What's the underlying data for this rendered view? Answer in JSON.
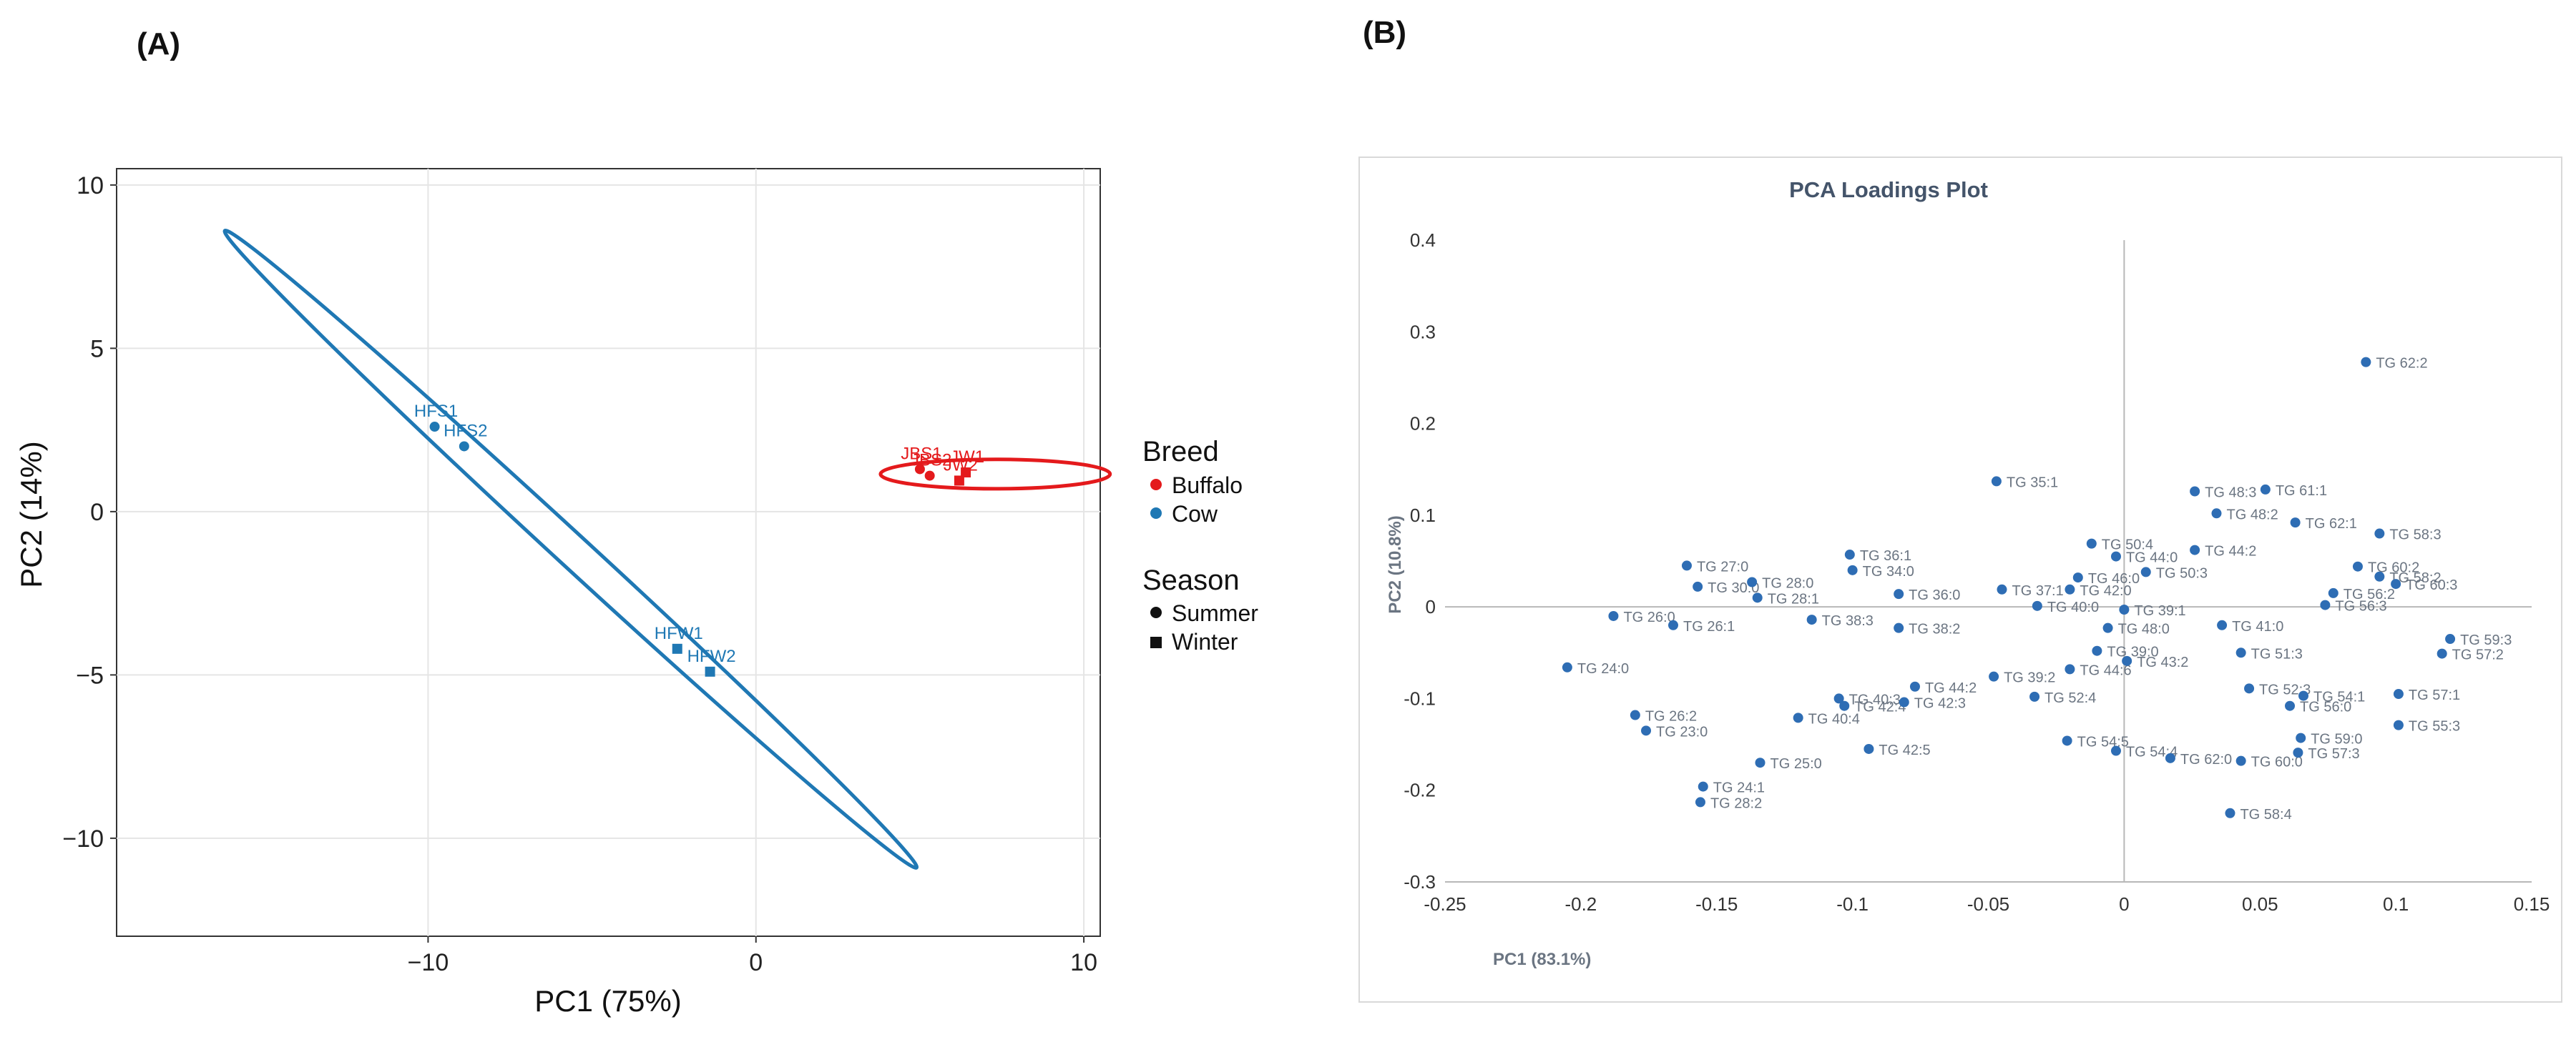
{
  "panel_labels": {
    "a": "(A)",
    "b": "(B)"
  },
  "chart_data": [
    {
      "type": "scatter",
      "title": "",
      "xlabel": "PC1 (75%)",
      "ylabel": "PC2 (14%)",
      "xlim": [
        -19.5,
        10.5
      ],
      "ylim": [
        -13,
        10.5
      ],
      "xticks": [
        -10,
        0,
        10
      ],
      "xtick_labels": [
        "−10",
        "0",
        "10"
      ],
      "yticks": [
        -10,
        -5,
        0,
        5,
        10
      ],
      "ytick_labels": [
        "−10",
        "−5",
        "0",
        "5",
        "10"
      ],
      "grid": true,
      "colors": {
        "Buffalo": "#e41a1c",
        "Cow": "#1f78b4",
        "grid": "#e5e5e5",
        "frame": "#333333"
      },
      "points": [
        {
          "label": "HFS1",
          "x": -9.8,
          "y": 2.6,
          "breed": "Cow",
          "season": "Summer"
        },
        {
          "label": "HFS2",
          "x": -8.9,
          "y": 2.0,
          "breed": "Cow",
          "season": "Summer"
        },
        {
          "label": "HFW1",
          "x": -2.4,
          "y": -4.2,
          "breed": "Cow",
          "season": "Winter"
        },
        {
          "label": "HFW2",
          "x": -1.4,
          "y": -4.9,
          "breed": "Cow",
          "season": "Winter"
        },
        {
          "label": "JBS1",
          "x": 5.0,
          "y": 1.3,
          "breed": "Buffalo",
          "season": "Summer"
        },
        {
          "label": "JBS2",
          "x": 5.3,
          "y": 1.1,
          "breed": "Buffalo",
          "season": "Summer"
        },
        {
          "label": "JW1",
          "x": 6.4,
          "y": 1.2,
          "breed": "Buffalo",
          "season": "Winter"
        },
        {
          "label": "JW2",
          "x": 6.2,
          "y": 0.95,
          "breed": "Buffalo",
          "season": "Winter"
        }
      ],
      "ellipses": [
        {
          "group": "Cow",
          "from": [
            -16.2,
            8.6
          ],
          "to": [
            4.9,
            -10.9
          ],
          "minor_half_axis": 0.5
        },
        {
          "group": "Buffalo",
          "center": [
            7.3,
            1.15
          ],
          "radius_x": 3.5,
          "radius_y": 0.45
        }
      ],
      "legend": {
        "placement": "right",
        "breed_title": "Breed",
        "breeds": [
          "Buffalo",
          "Cow"
        ],
        "season_title": "Season",
        "seasons": [
          "Summer",
          "Winter"
        ]
      }
    },
    {
      "type": "scatter",
      "title": "PCA Loadings Plot",
      "xlabel": "PC1 (83.1%)",
      "ylabel": "PC2 (10.8%)",
      "xlim": [
        -0.25,
        0.15
      ],
      "ylim": [
        -0.3,
        0.4
      ],
      "xticks": [
        -0.25,
        -0.2,
        -0.15,
        -0.1,
        -0.05,
        0,
        0.05,
        0.1,
        0.15
      ],
      "xtick_labels": [
        "-0.25",
        "-0.2",
        "-0.15",
        "-0.1",
        "-0.05",
        "0",
        "0.05",
        "0.1",
        "0.15"
      ],
      "yticks": [
        -0.3,
        -0.2,
        -0.1,
        0,
        0.1,
        0.2,
        0.3,
        0.4
      ],
      "ytick_labels": [
        "-0.3",
        "-0.2",
        "-0.1",
        "0",
        "0.1",
        "0.2",
        "0.3",
        "0.4"
      ],
      "grid": false,
      "colors": {
        "point": "#2e6db4",
        "label": "#6b7582",
        "title": "#44546a",
        "axis": "#b8b8b8",
        "frame": "#d9d9d9"
      },
      "points": [
        {
          "label": "TG 62:2",
          "x": 0.089,
          "y": 0.267
        },
        {
          "label": "TG 35:1",
          "x": -0.047,
          "y": 0.137
        },
        {
          "label": "TG 48:3",
          "x": 0.026,
          "y": 0.126
        },
        {
          "label": "TG 61:1",
          "x": 0.052,
          "y": 0.128
        },
        {
          "label": "TG 48:2",
          "x": 0.034,
          "y": 0.102
        },
        {
          "label": "TG 62:1",
          "x": 0.063,
          "y": 0.092
        },
        {
          "label": "TG 58:3",
          "x": 0.094,
          "y": 0.08
        },
        {
          "label": "TG 44:2",
          "x": 0.026,
          "y": 0.062
        },
        {
          "label": "TG 50:4",
          "x": -0.012,
          "y": 0.069
        },
        {
          "label": "TG 44:0",
          "x": -0.003,
          "y": 0.055
        },
        {
          "label": "TG 50:3",
          "x": 0.008,
          "y": 0.038
        },
        {
          "label": "TG 60:2",
          "x": 0.086,
          "y": 0.044
        },
        {
          "label": "TG 58:2",
          "x": 0.094,
          "y": 0.033
        },
        {
          "label": "TG 60:3",
          "x": 0.1,
          "y": 0.025
        },
        {
          "label": "TG 56:3",
          "x": 0.074,
          "y": 0.002
        },
        {
          "label": "TG 56:2",
          "x": 0.077,
          "y": 0.015
        },
        {
          "label": "TG 36:1",
          "x": -0.101,
          "y": 0.057
        },
        {
          "label": "TG 34:0",
          "x": -0.1,
          "y": 0.04
        },
        {
          "label": "TG 27:0",
          "x": -0.161,
          "y": 0.045
        },
        {
          "label": "TG 28:0",
          "x": -0.137,
          "y": 0.027
        },
        {
          "label": "TG 30:0",
          "x": -0.157,
          "y": 0.022
        },
        {
          "label": "TG 28:1",
          "x": -0.135,
          "y": 0.01
        },
        {
          "label": "TG 38:3",
          "x": -0.115,
          "y": -0.014
        },
        {
          "label": "TG 38:2",
          "x": -0.083,
          "y": -0.023
        },
        {
          "label": "TG 36:0",
          "x": -0.083,
          "y": 0.014
        },
        {
          "label": "TG 37:1",
          "x": -0.045,
          "y": 0.019
        },
        {
          "label": "TG 46:0",
          "x": -0.017,
          "y": 0.032
        },
        {
          "label": "TG 40:0",
          "x": -0.032,
          "y": 0.001
        },
        {
          "label": "TG 42:0",
          "x": -0.02,
          "y": 0.019
        },
        {
          "label": "TG 39:1",
          "x": 0.0,
          "y": -0.003
        },
        {
          "label": "TG 48:0",
          "x": -0.006,
          "y": -0.023
        },
        {
          "label": "TG 41:0",
          "x": 0.036,
          "y": -0.02
        },
        {
          "label": "TG 51:3",
          "x": 0.043,
          "y": -0.05
        },
        {
          "label": "TG 26:1",
          "x": -0.166,
          "y": -0.02
        },
        {
          "label": "TG 26:0",
          "x": -0.188,
          "y": -0.01
        },
        {
          "label": "TG 24:0",
          "x": -0.205,
          "y": -0.066
        },
        {
          "label": "TG 39:0",
          "x": -0.01,
          "y": -0.048
        },
        {
          "label": "TG 43:2",
          "x": 0.001,
          "y": -0.059
        },
        {
          "label": "TG 44:6",
          "x": -0.02,
          "y": -0.068
        },
        {
          "label": "TG 39:2",
          "x": -0.048,
          "y": -0.076
        },
        {
          "label": "TG 44:2",
          "x": -0.077,
          "y": -0.087
        },
        {
          "label": "TG 40:3",
          "x": -0.105,
          "y": -0.1
        },
        {
          "label": "TG 42:4",
          "x": -0.103,
          "y": -0.108
        },
        {
          "label": "TG 40:4",
          "x": -0.12,
          "y": -0.121
        },
        {
          "label": "TG 42:3",
          "x": -0.081,
          "y": -0.104
        },
        {
          "label": "TG 52:4",
          "x": -0.033,
          "y": -0.098
        },
        {
          "label": "TG 52:3",
          "x": 0.046,
          "y": -0.089
        },
        {
          "label": "TG 54:1",
          "x": 0.066,
          "y": -0.097
        },
        {
          "label": "TG 57:1",
          "x": 0.101,
          "y": -0.095
        },
        {
          "label": "TG 57:2",
          "x": 0.117,
          "y": -0.051
        },
        {
          "label": "TG 59:3",
          "x": 0.12,
          "y": -0.035
        },
        {
          "label": "TG 55:3",
          "x": 0.101,
          "y": -0.129
        },
        {
          "label": "TG 56:0",
          "x": 0.061,
          "y": -0.108
        },
        {
          "label": "TG 59:0",
          "x": 0.065,
          "y": -0.143
        },
        {
          "label": "TG 57:3",
          "x": 0.064,
          "y": -0.159
        },
        {
          "label": "TG 60:0",
          "x": 0.043,
          "y": -0.168
        },
        {
          "label": "TG 62:0",
          "x": 0.017,
          "y": -0.165
        },
        {
          "label": "TG 54:4",
          "x": -0.003,
          "y": -0.157
        },
        {
          "label": "TG 54:5",
          "x": -0.021,
          "y": -0.146
        },
        {
          "label": "TG 58:4",
          "x": 0.039,
          "y": -0.225
        },
        {
          "label": "TG 42:5",
          "x": -0.094,
          "y": -0.155
        },
        {
          "label": "TG 25:0",
          "x": -0.134,
          "y": -0.17
        },
        {
          "label": "TG 24:1",
          "x": -0.155,
          "y": -0.196
        },
        {
          "label": "TG 28:2",
          "x": -0.156,
          "y": -0.213
        },
        {
          "label": "TG 26:2",
          "x": -0.18,
          "y": -0.118
        },
        {
          "label": "TG 23:0",
          "x": -0.176,
          "y": -0.135
        }
      ]
    }
  ]
}
